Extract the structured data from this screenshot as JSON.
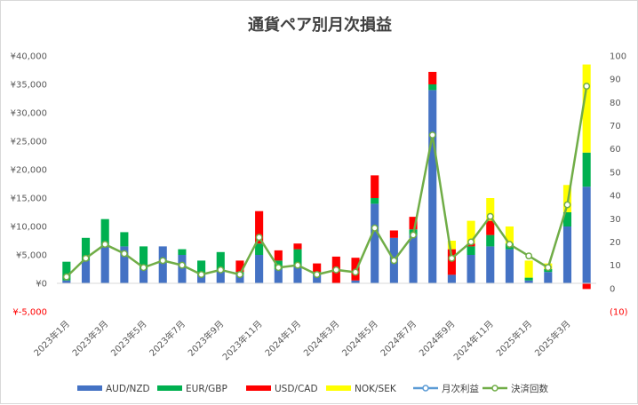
{
  "chart_data": {
    "type": "bar",
    "title": "通貨ペア別月次損益",
    "stacked": true,
    "months": [
      "2023年1月",
      "2023年2月",
      "2023年3月",
      "2023年4月",
      "2023年5月",
      "2023年6月",
      "2023年7月",
      "2023年8月",
      "2023年9月",
      "2023年10月",
      "2023年11月",
      "2023年12月",
      "2024年1月",
      "2024年2月",
      "2024年3月",
      "2024年4月",
      "2024年5月",
      "2024年6月",
      "2024年7月",
      "2024年8月",
      "2024年9月",
      "2024年10月",
      "2024年11月",
      "2024年12月",
      "2025年1月",
      "2025年2月",
      "2025年3月",
      "2025年4月"
    ],
    "x_tick_labels": [
      "2023年1月",
      "2023年3月",
      "2023年5月",
      "2023年7月",
      "2023年9月",
      "2023年11月",
      "2024年1月",
      "2024年3月",
      "2024年5月",
      "2024年7月",
      "2024年9月",
      "2024年11月",
      "2025年1月",
      "2025年3月"
    ],
    "y_left": {
      "min": -5000,
      "max": 40000,
      "step": 5000,
      "tick_labels": [
        "¥-5,000",
        "¥0",
        "¥5,000",
        "¥10,000",
        "¥15,000",
        "¥20,000",
        "¥25,000",
        "¥30,000",
        "¥35,000",
        "¥40,000"
      ]
    },
    "y_right": {
      "min": -10,
      "max": 100,
      "step": 10,
      "tick_labels": [
        "(10)",
        "0",
        "10",
        "20",
        "30",
        "40",
        "50",
        "60",
        "70",
        "80",
        "90",
        "100"
      ]
    },
    "series": [
      {
        "name": "AUD/NZD",
        "color": "#4472c4",
        "values": [
          500,
          4000,
          6500,
          6500,
          2500,
          6500,
          5000,
          1500,
          2500,
          1500,
          5000,
          2500,
          3000,
          1500,
          0,
          500,
          14000,
          8000,
          8500,
          34000,
          1500,
          5000,
          6500,
          6000,
          500,
          2000,
          10000,
          17000
        ]
      },
      {
        "name": "EUR/GBP",
        "color": "#00b050",
        "values": [
          3300,
          4000,
          4800,
          2500,
          4000,
          0,
          1000,
          2500,
          3000,
          500,
          2000,
          1500,
          3000,
          500,
          0,
          0,
          1000,
          0,
          1000,
          1000,
          0,
          1500,
          2000,
          1000,
          500,
          500,
          2500,
          6000
        ]
      },
      {
        "name": "USD/CAD",
        "color": "#ff0000",
        "values": [
          0,
          0,
          0,
          0,
          0,
          0,
          0,
          0,
          0,
          2000,
          5700,
          1800,
          1000,
          1500,
          4700,
          4000,
          4000,
          1300,
          2200,
          2200,
          4500,
          500,
          2500,
          0,
          0,
          0,
          0,
          -1000
        ]
      },
      {
        "name": "NOK/SEK",
        "color": "#ffff00",
        "values": [
          0,
          0,
          0,
          0,
          0,
          0,
          0,
          0,
          0,
          0,
          0,
          0,
          0,
          0,
          0,
          0,
          0,
          0,
          0,
          0,
          1500,
          4000,
          4000,
          3000,
          3000,
          1000,
          4800,
          15500
        ]
      }
    ],
    "lines": [
      {
        "name": "月次利益",
        "color": "#5b9bd5",
        "axis": "left",
        "values": []
      },
      {
        "name": "決済回数",
        "color": "#70ad47",
        "axis": "right",
        "values": [
          5,
          13,
          19,
          15,
          9,
          12,
          10,
          6,
          8,
          6,
          22,
          9,
          10,
          6,
          8,
          7,
          26,
          12,
          23,
          66,
          13,
          20,
          31,
          19,
          14,
          9,
          36,
          87
        ]
      }
    ],
    "legend": {
      "position": "bottom",
      "entries": [
        "AUD/NZD",
        "EUR/GBP",
        "USD/CAD",
        "NOK/SEK",
        "月次利益",
        "決済回数"
      ]
    },
    "grid": false
  }
}
